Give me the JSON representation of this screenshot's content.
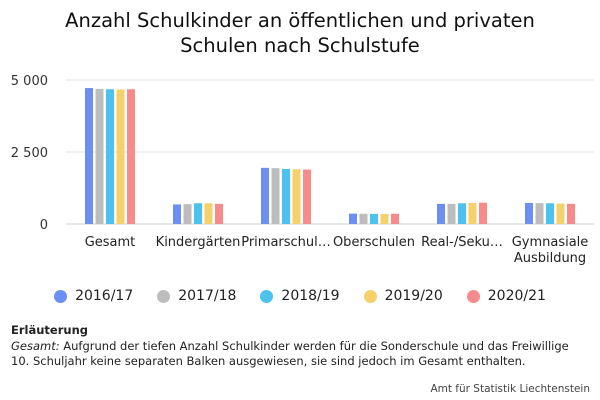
{
  "title_line1": "Anzahl Schulkinder an öffentlichen und privaten",
  "title_line2": "Schulen nach Schulstufe",
  "note": {
    "heading": "Erläuterung",
    "lead": "Gesamt:",
    "text1": " Aufgrund der tiefen Anzahl Schulkinder werden für die Sonderschule und das Freiwillige",
    "text2": "10. Schuljahr keine separaten Balken ausgewiesen, sie sind jedoch im Gesamt enthalten."
  },
  "source": "Amt für Statistik Liechtenstein",
  "chart_data": {
    "type": "bar",
    "title": "Anzahl Schulkinder an öffentlichen und privaten Schulen nach Schulstufe",
    "categories": [
      "Gesamt",
      "Kindergärten",
      "Primarschul…",
      "Oberschulen",
      "Real-/Seku…",
      "Gymnasiale Ausbildung"
    ],
    "category_lines": [
      [
        "Gesamt"
      ],
      [
        "Kindergärten"
      ],
      [
        "Primarschul…"
      ],
      [
        "Oberschulen"
      ],
      [
        "Real-/Seku…"
      ],
      [
        "Gymnasiale",
        "Ausbildung"
      ]
    ],
    "series": [
      {
        "name": "2016/17",
        "color": "#6b8ff2",
        "values": [
          4720,
          680,
          1950,
          360,
          700,
          730
        ]
      },
      {
        "name": "2017/18",
        "color": "#bdbdbd",
        "values": [
          4690,
          690,
          1940,
          355,
          700,
          725
        ]
      },
      {
        "name": "2018/19",
        "color": "#4cc3ee",
        "values": [
          4680,
          720,
          1910,
          350,
          720,
          720
        ]
      },
      {
        "name": "2019/20",
        "color": "#f5d06b",
        "values": [
          4670,
          720,
          1900,
          350,
          730,
          710
        ]
      },
      {
        "name": "2020/21",
        "color": "#f78b8b",
        "values": [
          4680,
          700,
          1890,
          355,
          740,
          700
        ]
      }
    ],
    "yticks": [
      0,
      2500,
      5000
    ],
    "ytick_labels": [
      "0",
      "2 500",
      "5 000"
    ],
    "ylim": [
      0,
      5000
    ],
    "grid": true,
    "legend_position": "bottom"
  }
}
